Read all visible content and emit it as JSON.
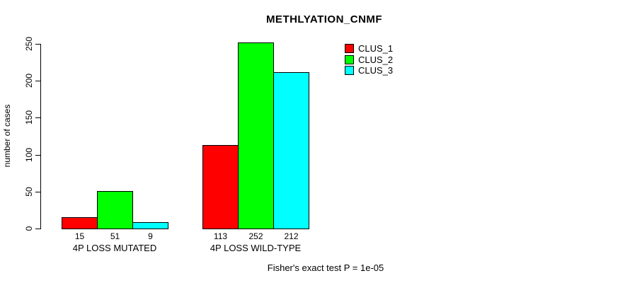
{
  "chart_data": {
    "type": "bar",
    "title": "METHLYATION_CNMF",
    "ylabel": "number of cases",
    "xlabel": "",
    "categories": [
      "4P LOSS MUTATED",
      "4P LOSS WILD-TYPE"
    ],
    "series": [
      {
        "name": "CLUS_1",
        "color": "#ff0000",
        "values": [
          15,
          113
        ]
      },
      {
        "name": "CLUS_2",
        "color": "#00ff00",
        "values": [
          51,
          252
        ]
      },
      {
        "name": "CLUS_3",
        "color": "#00ffff",
        "values": [
          9,
          212
        ]
      }
    ],
    "ylim": [
      0,
      250
    ],
    "yticks": [
      0,
      50,
      100,
      150,
      200,
      250
    ],
    "bar_value_labels": true,
    "annotation": "Fisher's exact test P = 1e-05",
    "legend_position": "top-right",
    "grid": false,
    "background_color": "#ffffff",
    "axis_color": "#000000"
  }
}
